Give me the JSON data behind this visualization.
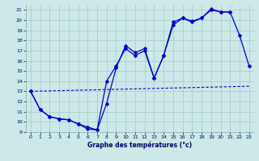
{
  "title": "Graphe des températures (°c)",
  "bg_color": "#cce8e8",
  "line_color": "#0000cc",
  "xlim": [
    -0.5,
    23.5
  ],
  "ylim": [
    9,
    21.5
  ],
  "xticks": [
    0,
    1,
    2,
    3,
    4,
    5,
    6,
    7,
    8,
    9,
    10,
    11,
    12,
    13,
    14,
    15,
    16,
    17,
    18,
    19,
    20,
    21,
    22,
    23
  ],
  "yticks": [
    9,
    10,
    11,
    12,
    13,
    14,
    15,
    16,
    17,
    18,
    19,
    20,
    21
  ],
  "series1": {
    "x": [
      0,
      1,
      2,
      3,
      4,
      5,
      6,
      7,
      8,
      9,
      10,
      11,
      12,
      13,
      14,
      15,
      16,
      17,
      18,
      19,
      20,
      21,
      22,
      23
    ],
    "y": [
      13,
      11.2,
      10.5,
      10.3,
      10.2,
      9.8,
      9.3,
      9.2,
      11.8,
      15.3,
      17.5,
      16.8,
      17.2,
      14.3,
      16.5,
      19.8,
      20.2,
      19.8,
      20.2,
      21.1,
      20.8,
      20.8,
      18.5,
      15.5
    ]
  },
  "series2": {
    "x": [
      0,
      1,
      2,
      3,
      4,
      5,
      6,
      7,
      8,
      9,
      10,
      11,
      12,
      13,
      14,
      15,
      16,
      17,
      18,
      19,
      20,
      21
    ],
    "y": [
      13,
      11.2,
      10.5,
      10.3,
      10.2,
      9.8,
      9.5,
      9.2,
      14.0,
      15.5,
      17.2,
      16.5,
      17.0,
      14.3,
      16.5,
      19.5,
      20.2,
      19.9,
      20.2,
      21.0,
      20.8,
      20.8
    ]
  },
  "series3": {
    "x": [
      0,
      23
    ],
    "y": [
      13.0,
      13.5
    ]
  },
  "marker": "D",
  "markersize": 2.5,
  "linewidth": 0.9
}
